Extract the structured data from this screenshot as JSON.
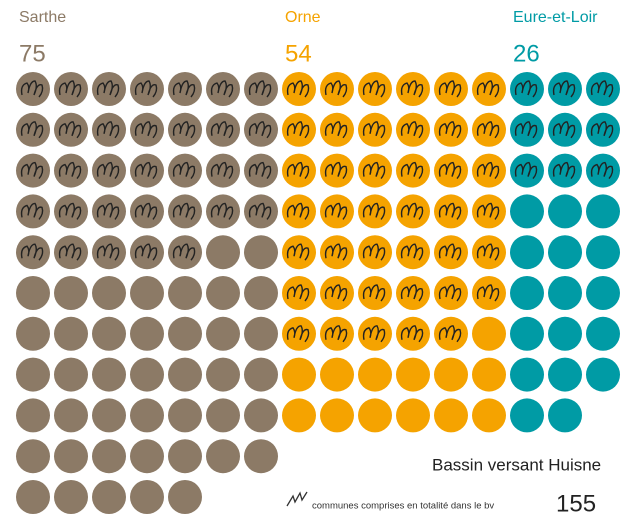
{
  "chart_data": {
    "type": "waffle",
    "title": "Bassin versant Huisne",
    "total": 155,
    "legend": "communes comprises en totalité dans le bv",
    "series": [
      {
        "name": "Sarthe",
        "color": "#8c7a66",
        "values": [
          75
        ],
        "hatched": 33,
        "columns": 7
      },
      {
        "name": "Orne",
        "color": "#f5a300",
        "values": [
          54
        ],
        "hatched": 41,
        "columns": 6
      },
      {
        "name": "Eure-et-Loir",
        "color": "#009ba5",
        "values": [
          26
        ],
        "hatched": 9,
        "columns": 3
      }
    ]
  }
}
